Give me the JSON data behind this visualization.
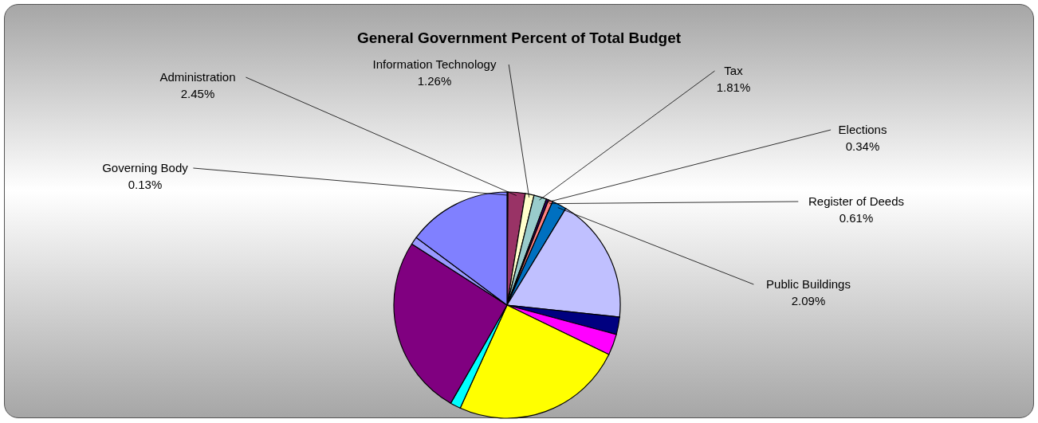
{
  "chart_data": {
    "type": "pie",
    "title": "General Government Percent of Total Budget",
    "categories": [
      "Governing Body",
      "Administration",
      "Information Technology",
      "Tax",
      "Elections",
      "Register of Deeds",
      "Public Buildings",
      null,
      null,
      null,
      null,
      null,
      null,
      null,
      null
    ],
    "values": [
      0.13,
      2.45,
      1.26,
      1.81,
      0.34,
      0.61,
      2.09,
      18,
      2.5,
      3,
      24.6,
      1.5,
      25.8,
      1.1,
      14.81
    ],
    "value_labels": [
      "0.13%",
      "2.45%",
      "1.26%",
      "1.81%",
      "0.34%",
      "0.61%",
      "2.09%",
      null,
      null,
      null,
      null,
      null,
      null,
      null,
      null
    ],
    "colors": [
      "#ffffff",
      "#993366",
      "#ffffcc",
      "#99cccc",
      "#330066",
      "#ff8080",
      "#0070c0",
      "#c0c0ff",
      "#000080",
      "#ff00ff",
      "#ffff00",
      "#00ffff",
      "#800080",
      "#9999ff",
      "#8080ff"
    ]
  }
}
